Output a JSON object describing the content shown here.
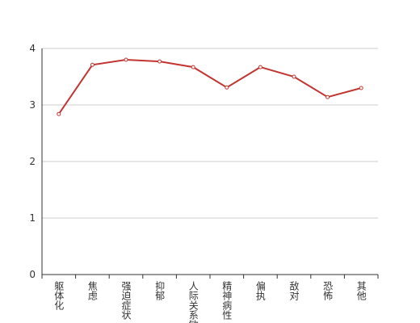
{
  "chart_data": {
    "type": "line",
    "categories": [
      "躯体化",
      "焦虑",
      "强迫症状",
      "抑郁",
      "人际关系敏感",
      "精神病性",
      "偏执",
      "敌对",
      "恐怖",
      "其他"
    ],
    "series": [
      {
        "color": "#c23531",
        "values": [
          2.84,
          3.71,
          3.8,
          3.77,
          3.67,
          3.31,
          3.67,
          3.5,
          3.14,
          3.3
        ]
      }
    ],
    "ylim": [
      0,
      4
    ],
    "yticks": [
      0,
      1,
      2,
      3,
      4
    ],
    "grid": true
  }
}
